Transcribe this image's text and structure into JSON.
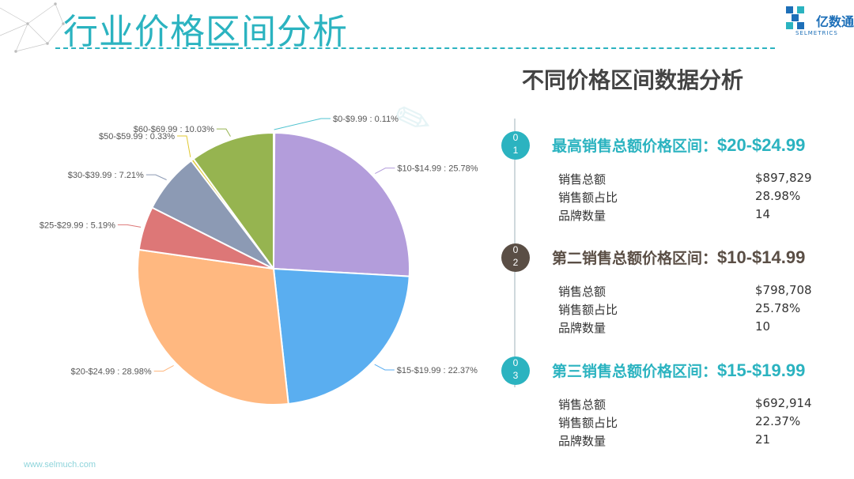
{
  "page": {
    "title": "行业价格区间分析",
    "logo_text": "亿数通",
    "logo_sub": "SELMETRICS",
    "footer": "www.selmuch.com",
    "accent": "#2bb3c0",
    "dark_accent": "#5a4e45"
  },
  "right_title": "不同价格区间数据分析",
  "ranks": [
    {
      "digits": [
        "0",
        "1"
      ],
      "heading": "最高销售总额价格区间：",
      "range": "$20-$24.99",
      "color": "#2bb3c0",
      "stats": [
        {
          "label": "销售总额",
          "value": "$897,829"
        },
        {
          "label": "销售额占比",
          "value": "28.98%"
        },
        {
          "label": "品牌数量",
          "value": "14"
        }
      ]
    },
    {
      "digits": [
        "0",
        "2"
      ],
      "heading": "第二销售总额价格区间：",
      "range": "$10-$14.99",
      "color": "#5a4e45",
      "stats": [
        {
          "label": "销售总额",
          "value": "$798,708"
        },
        {
          "label": "销售额占比",
          "value": "25.78%"
        },
        {
          "label": "品牌数量",
          "value": "10"
        }
      ]
    },
    {
      "digits": [
        "0",
        "3"
      ],
      "heading": "第三销售总额价格区间：",
      "range": "$15-$19.99",
      "color": "#2bb3c0",
      "stats": [
        {
          "label": "销售总额",
          "value": "$692,914"
        },
        {
          "label": "销售额占比",
          "value": "22.37%"
        },
        {
          "label": "品牌数量",
          "value": "21"
        }
      ]
    }
  ],
  "chart_data": {
    "type": "pie",
    "categories": [
      "$0-$9.99",
      "$10-$14.99",
      "$15-$19.99",
      "$20-$24.99",
      "$25-$29.99",
      "$30-$39.99",
      "$50-$59.99",
      "$60-$69.99"
    ],
    "values": [
      0.11,
      25.78,
      22.37,
      28.98,
      5.19,
      7.21,
      0.33,
      10.03
    ],
    "labels": [
      "$0-$9.99 : 0.11%",
      "$10-$14.99 : 25.78%",
      "$15-$19.99 : 22.37%",
      "$20-$24.99 : 28.98%",
      "$25-$29.99 : 5.19%",
      "$30-$39.99 : 7.21%",
      "$50-$59.99 : 0.33%",
      "$60-$69.99 : 10.03%"
    ],
    "colors": [
      "#4fc3d0",
      "#b39ddb",
      "#5aaef0",
      "#ffb880",
      "#dd7777",
      "#8c9ab4",
      "#e0c830",
      "#96b450"
    ],
    "start": "top, clockwise"
  }
}
